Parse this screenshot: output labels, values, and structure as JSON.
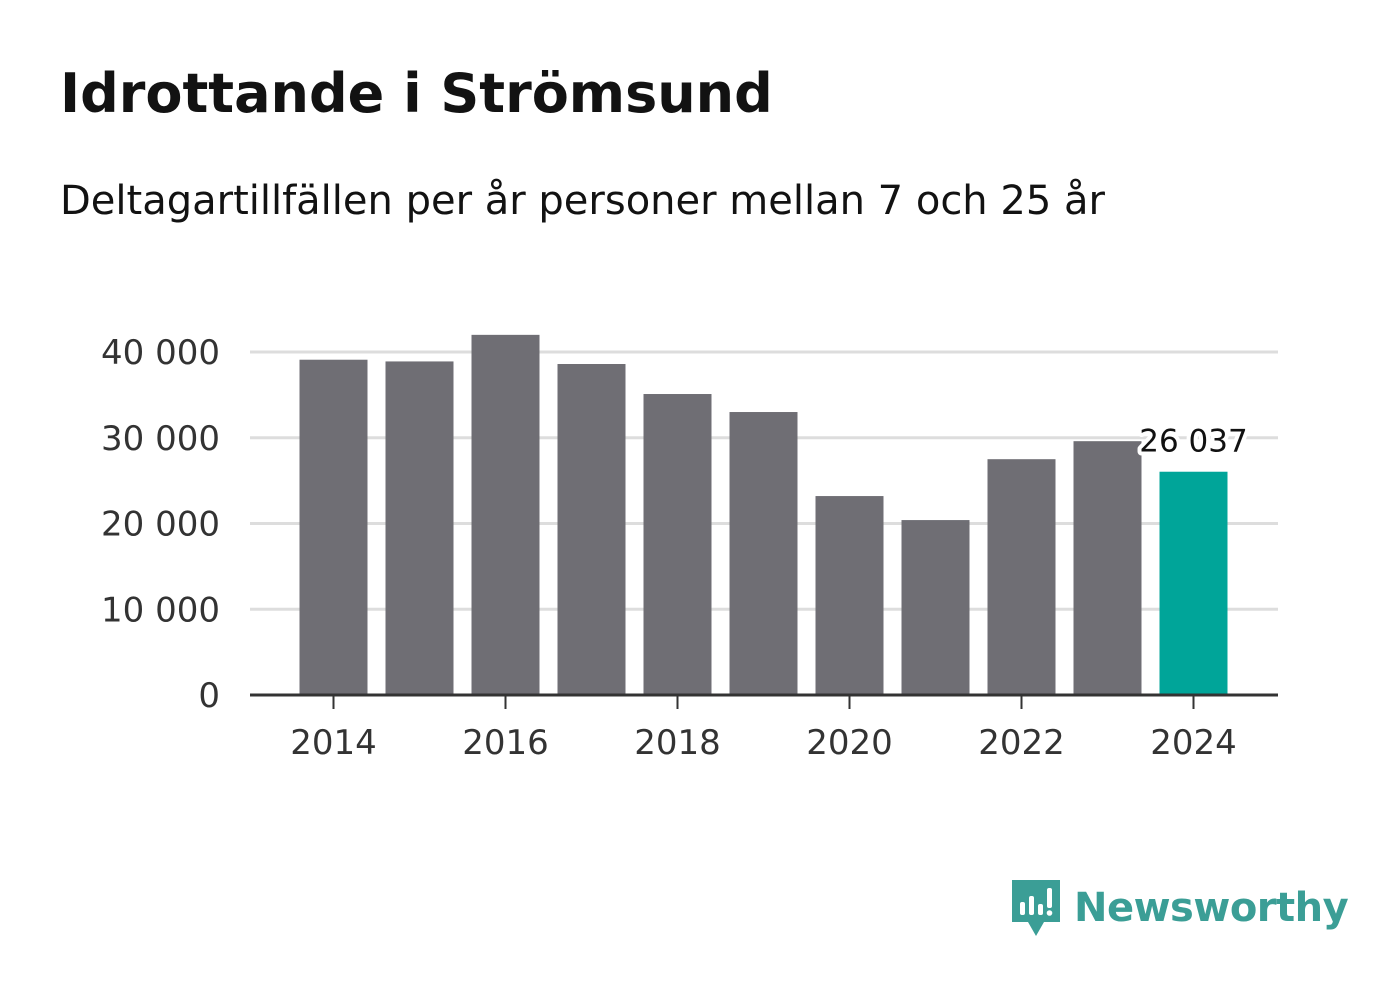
{
  "title": "Idrottande i Strömsund",
  "subtitle": "Deltagartillfällen per år personer mellan 7 och 25 år",
  "brand": {
    "name": "Newsworthy",
    "color": "#3b9e96",
    "icon": "newsworthy-logo-icon"
  },
  "colors": {
    "bar": "#6f6e74",
    "highlight": "#00a599",
    "grid": "#dddddd",
    "axis": "#333333"
  },
  "chart_data": {
    "type": "bar",
    "title": "Idrottande i Strömsund",
    "subtitle": "Deltagartillfällen per år personer mellan 7 och 25 år",
    "xlabel": "",
    "ylabel": "",
    "categories": [
      2014,
      2015,
      2016,
      2017,
      2018,
      2019,
      2020,
      2021,
      2022,
      2023,
      2024
    ],
    "values": [
      39100,
      38900,
      42000,
      38600,
      35100,
      33000,
      23200,
      20400,
      27500,
      29600,
      26037
    ],
    "highlight_index": 10,
    "data_labels": [
      {
        "index": 10,
        "text": "26 037"
      }
    ],
    "x_tick_labels": [
      "2014",
      "2016",
      "2018",
      "2020",
      "2022",
      "2024"
    ],
    "y_ticks": [
      {
        "value": 0,
        "label": "0"
      },
      {
        "value": 10000,
        "label": "10 000"
      },
      {
        "value": 20000,
        "label": "20 000"
      },
      {
        "value": 30000,
        "label": "30 000"
      },
      {
        "value": 40000,
        "label": "40 000"
      }
    ],
    "ylim": [
      0,
      40000
    ],
    "grid": true
  }
}
